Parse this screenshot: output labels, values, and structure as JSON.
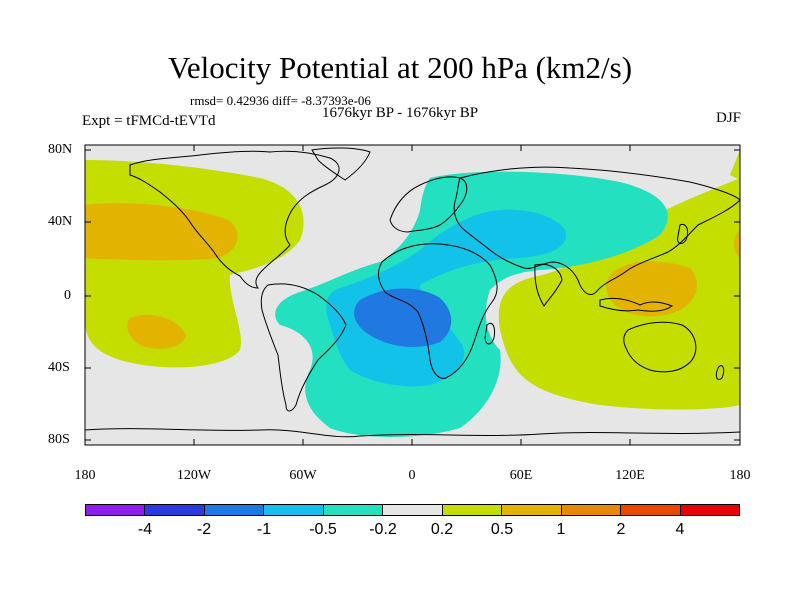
{
  "title": "Velocity Potential at 200 hPa (km2/s)",
  "stats": "rmsd= 0.42936 diff= -8.37393e-06",
  "experiment": "Expt = tFMCd-tEVTd",
  "period": "1676kyr BP - 1676kyr BP",
  "season": "DJF",
  "lat_labels": [
    "80N",
    "40N",
    "0",
    "40S",
    "80S"
  ],
  "lon_labels": [
    "180",
    "120W",
    "60W",
    "0",
    "60E",
    "120E",
    "180"
  ],
  "colorbar": {
    "colors": [
      "#8e1ee8",
      "#2a3bd8",
      "#1f79e0",
      "#13c2e8",
      "#22e0c0",
      "#e6e6e6",
      "#c3de00",
      "#e2b300",
      "#e38a00",
      "#e44a00",
      "#e80000"
    ],
    "labels": [
      "-4",
      "-2",
      "-1",
      "-0.5",
      "-0.2",
      "0.2",
      "0.5",
      "1",
      "2",
      "4"
    ]
  },
  "map_colors": {
    "ocean_background": "#e6e6e6",
    "positive_05": "#c3de00",
    "positive_1": "#e2b300",
    "negative_02": "#22e0c0",
    "negative_05": "#13c2e8",
    "negative_1": "#1f79e0"
  }
}
